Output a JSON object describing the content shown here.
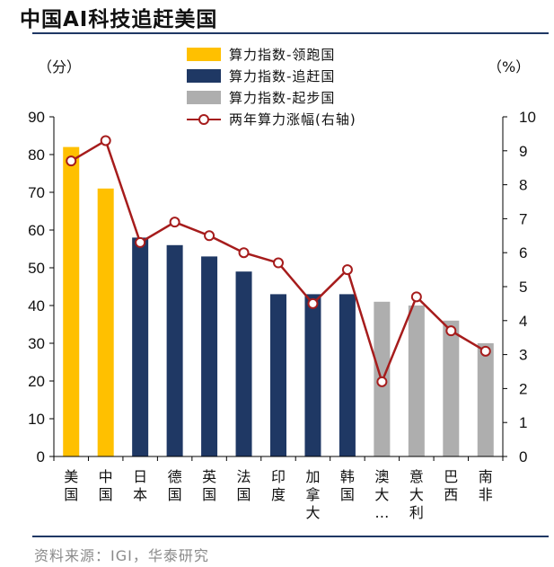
{
  "header": {
    "title": "中国AI科技追赶美国"
  },
  "footer": {
    "source": "资料来源：IGI，华泰研究"
  },
  "colors": {
    "leader": "#FFC000",
    "chaser": "#1F3864",
    "starter": "#AEAEAE",
    "growth": "#A61C1C"
  },
  "chart_data": {
    "type": "bar",
    "categories": [
      "美国",
      "中国",
      "日本",
      "德国",
      "英国",
      "法国",
      "印度",
      "加拿大",
      "韩国",
      "澳大…",
      "意大利",
      "巴西",
      "南非"
    ],
    "series": [
      {
        "name": "算力指数-领跑国",
        "type": "bar",
        "axis": "left",
        "values": [
          82,
          71,
          null,
          null,
          null,
          null,
          null,
          null,
          null,
          null,
          null,
          null,
          null
        ]
      },
      {
        "name": "算力指数-追赶国",
        "type": "bar",
        "axis": "left",
        "values": [
          null,
          null,
          58,
          56,
          53,
          49,
          43,
          43,
          43,
          null,
          null,
          null,
          null
        ]
      },
      {
        "name": "算力指数-起步国",
        "type": "bar",
        "axis": "left",
        "values": [
          null,
          null,
          null,
          null,
          null,
          null,
          null,
          null,
          null,
          41,
          40,
          36,
          30
        ]
      },
      {
        "name": "两年算力涨幅(右轴)",
        "type": "line",
        "axis": "right",
        "values": [
          8.7,
          9.3,
          6.3,
          6.9,
          6.5,
          6.0,
          5.7,
          4.5,
          5.5,
          2.2,
          4.7,
          3.7,
          3.1
        ]
      }
    ],
    "ylabel_left": "（分）",
    "ylabel_right": "（%）",
    "ylim_left": [
      0,
      90
    ],
    "ylim_right": [
      0,
      10
    ],
    "yticks_left": [
      "0",
      "10",
      "20",
      "30",
      "40",
      "50",
      "60",
      "70",
      "80",
      "90"
    ],
    "yticks_right": [
      "0",
      "1",
      "2",
      "3",
      "4",
      "5",
      "6",
      "7",
      "8",
      "9",
      "10"
    ],
    "grid": false,
    "legend_position": "top-center"
  }
}
